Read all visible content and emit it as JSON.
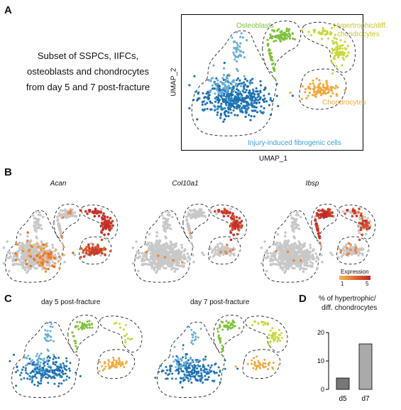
{
  "panels": {
    "A": {
      "letter": "A",
      "description": [
        "Subset of SSPCs, IIFCs,",
        "osteoblasts and chondrocytes",
        "from day 5 and 7 post-fracture"
      ],
      "x_axis_label": "UMAP_1",
      "y_axis_label": "UMAP_2",
      "cluster_labels": {
        "osteoblasts": "Osteoblasts",
        "hypertrophic_line1": "Hypertrophic/diff.",
        "hypertrophic_line2": "chondrocytes",
        "chondrocytes": "Chondrocytes",
        "iifc": "Injury-induced fibrogenic cells"
      }
    },
    "B": {
      "letter": "B",
      "genes": [
        "Acan",
        "Col10a1",
        "Ibsp"
      ],
      "legend_title": "Expression",
      "legend_min": "1",
      "legend_max": "5"
    },
    "C": {
      "letter": "C",
      "titles": [
        "day 5 post-fracture",
        "day 7 post-fracture"
      ]
    },
    "D": {
      "letter": "D",
      "title_line1": "% of hypertrophic/",
      "title_line2": "diff. chondrocytes"
    }
  },
  "colors": {
    "iifc_dark": "#1f6fb0",
    "iifc_light": "#6baed6",
    "osteoblasts": "#7ec13b",
    "hypertrophic": "#c8d83a",
    "chondrocytes": "#f2a93b",
    "gray": "#c8c8c8",
    "expr_low": "#f6b65a",
    "expr_high": "#c0282a",
    "bar_d5": "#777777",
    "bar_d7": "#aaaaaa"
  },
  "chart_data": {
    "type": "bar",
    "categories": [
      "d5",
      "d7"
    ],
    "values": [
      4,
      16
    ],
    "ylim": [
      0,
      20
    ],
    "yticks": [
      0,
      10,
      20
    ],
    "title": "% of hypertrophic/ diff. chondrocytes"
  }
}
